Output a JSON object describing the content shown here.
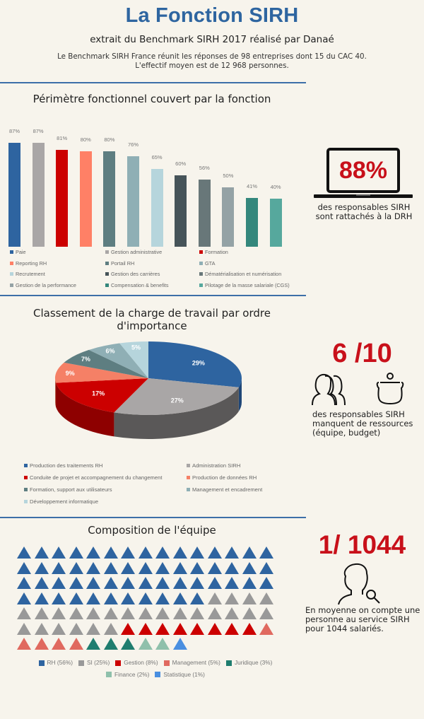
{
  "header": {
    "title": "La Fonction SIRH",
    "subtitle": "extrait du Benchmark SIRH 2017 réalisé par Danaé",
    "intro_line1": "Le Benchmark SIRH France réunit les réponses de 98 entreprises dont 15 du CAC 40.",
    "intro_line2": "L'effectif moyen est de 12 968 personnes."
  },
  "section1": {
    "title": "Périmètre fonctionnel couvert par la fonction",
    "stat": {
      "value": "88%",
      "text_line1": "des responsables SIRH",
      "text_line2": "sont rattachés à la DRH"
    }
  },
  "section2": {
    "title_line1": "Classement de la charge de travail par ordre",
    "title_line2": "d'importance",
    "stat": {
      "value": "6 /10",
      "text_line1": "des responsables SIRH",
      "text_line2": "manquent de ressources",
      "text_line3": "(équipe, budget)"
    }
  },
  "section3": {
    "title": "Composition de l'équipe",
    "stat": {
      "value": "1/ 1044",
      "text_line1": "En moyenne on compte une",
      "text_line2": "personne au service SIRH",
      "text_line3": "pour 1044 salariés."
    }
  },
  "chart_data": [
    {
      "type": "bar",
      "title": "Périmètre fonctionnel couvert par la fonction",
      "categories": [
        "Paie",
        "Gestion administrative",
        "Formation",
        "Reporting RH",
        "Portail RH",
        "GTA",
        "Recrutement",
        "Gestion des carrières",
        "Dématérialisation et numérisation",
        "Gestion de la performance",
        "Compensation & benefits",
        "Pilotage de la masse salariale (CGS)"
      ],
      "values": [
        87,
        87,
        81,
        80,
        80,
        76,
        65,
        60,
        56,
        50,
        41,
        40
      ],
      "labels": [
        "87%",
        "87%",
        "81%",
        "80%",
        "80%",
        "76%",
        "65%",
        "60%",
        "56%",
        "50%",
        "41%",
        "40%"
      ],
      "colors": [
        "#2e64a0",
        "#a9a6a6",
        "#cc0000",
        "#ff8066",
        "#5e7e81",
        "#8fafb5",
        "#b6d5dc",
        "#465459",
        "#687779",
        "#94a2a5",
        "#34877c",
        "#56a89d"
      ],
      "xlabel": "",
      "ylabel": "",
      "ylim": [
        0,
        100
      ],
      "grid": false,
      "legend_position": "bottom",
      "unit": "%"
    },
    {
      "type": "pie",
      "title": "Classement de la charge de travail par ordre d'importance",
      "categories": [
        "Production des traitements RH",
        "Administration SIRH",
        "Conduite de projet et accompagnement du changement",
        "Production de données RH",
        "Formation, support aux utilisateurs",
        "Management et encadrement",
        "Développement informatique"
      ],
      "values": [
        29,
        27,
        17,
        9,
        7,
        6,
        5
      ],
      "labels": [
        "29%",
        "27%",
        "17%",
        "9%",
        "7%",
        "6%",
        "5%"
      ],
      "colors": [
        "#2e64a0",
        "#a9a6a6",
        "#cc0000",
        "#f58066",
        "#5e7e81",
        "#8fafb5",
        "#b6d5dc"
      ],
      "style": "3d",
      "legend_position": "bottom"
    },
    {
      "type": "pictogram",
      "title": "Composition de l'équipe",
      "categories": [
        "RH",
        "SI",
        "Gestion",
        "Management",
        "Juridique",
        "Finance",
        "Statistique"
      ],
      "values": [
        56,
        25,
        8,
        5,
        3,
        2,
        1
      ],
      "labels": [
        "RH (56%)",
        "SI (25%)",
        "Gestion (8%)",
        "Management (5%)",
        "Juridique (3%)",
        "Finance (2%)",
        "Statistique (1%)"
      ],
      "colors": [
        "#2e64a0",
        "#999999",
        "#cc0000",
        "#e0695f",
        "#1f7d6f",
        "#8fc0ab",
        "#4a8fe0"
      ],
      "icons_per_row": 15,
      "icon": "triangle",
      "legend_position": "bottom"
    }
  ]
}
